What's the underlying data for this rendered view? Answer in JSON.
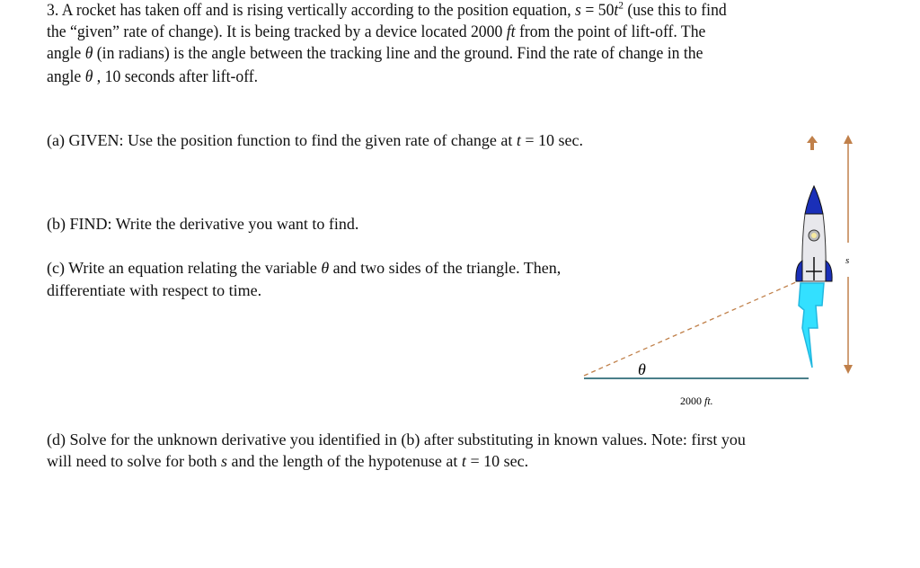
{
  "problem": {
    "line1": {
      "a": "3. A rocket has taken off and is rising vertically according to the position equation,",
      "eq_var": "s",
      "eq_mid": " = 50",
      "eq_t": "t",
      "eq_exp": "2",
      "b": " (use this to find"
    },
    "line2": {
      "a": "the “given” rate of change). It is being tracked by a device located 2000 ",
      "unit": "ft",
      "b": " from the point of lift-off. The"
    },
    "line3": {
      "a": "angle ",
      "theta": "θ",
      "b": " (in radians) is the angle between the tracking line and the ground.  Find the rate of change in the"
    },
    "line4": {
      "a": "angle ",
      "theta": "θ",
      "b": " , 10 seconds after lift-off."
    }
  },
  "parts": {
    "a": {
      "a": "(a) GIVEN: Use the position function to find the given rate of change at ",
      "t": "t",
      "b": " = 10 sec."
    },
    "b": {
      "text": "(b) FIND: Write the derivative you want to find."
    },
    "c": {
      "a": "(c)  Write an equation relating the variable ",
      "theta": "θ",
      "b": "  and two sides of the triangle. Then,",
      "line2": "differentiate with respect to time."
    },
    "d": {
      "a": "(d) Solve for the unknown derivative you identified in (b) after substituting in known values. Note: first you",
      "b": "will need to solve for both ",
      "s": "s",
      "c": " and the length of the hypotenuse at ",
      "t": "t",
      "d": " = 10 sec."
    }
  },
  "diagram": {
    "theta_label": "θ",
    "base_value": "2000 ",
    "base_unit": "ft.",
    "height_label": "s",
    "colors": {
      "arrow": "#c0804a",
      "ground": "#4a7f8a",
      "rocket_blue": "#1a2fb8",
      "flame": "#33e0ff"
    }
  }
}
